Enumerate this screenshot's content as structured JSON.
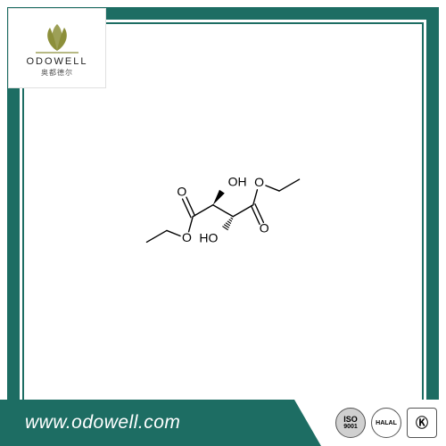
{
  "colors": {
    "teal": "#1d6d63",
    "frame_inner": "#1d6d63",
    "bg": "#ffffff",
    "black": "#000000",
    "logo_olive": "#8c8f3a",
    "badge_iso_fill": "#d0d0d0",
    "badge_border": "#555555"
  },
  "logo": {
    "wordmark": "ODOWELL",
    "subtitle": "奥都德尔"
  },
  "chem": {
    "labels": {
      "O_tl": "O",
      "OH_tr": "OH",
      "O_r": "O",
      "O_l": "O",
      "HO_bl": "HO",
      "O_br": "O"
    },
    "line_width": 1.4,
    "font_size": 14
  },
  "footer": {
    "url": "www.odowell.com",
    "badges": [
      {
        "name": "iso-9001-badge",
        "text": "ISO",
        "sub": "9001",
        "shape": "circle"
      },
      {
        "name": "halal-badge",
        "text": "HALAL",
        "sub": "",
        "shape": "circle"
      },
      {
        "name": "kosher-badge",
        "text": "Ⓚ",
        "sub": "",
        "shape": "square"
      }
    ]
  }
}
